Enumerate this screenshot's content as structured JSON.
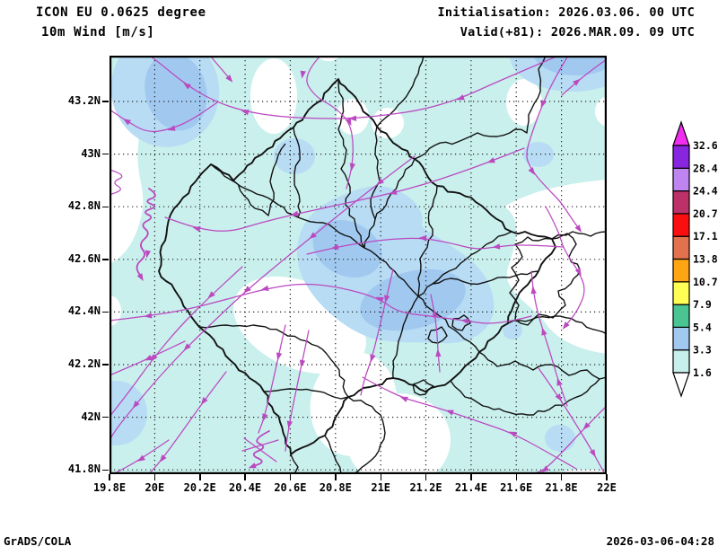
{
  "header": {
    "model": "ICON EU 0.0625 degree",
    "field": "10m Wind [m/s]",
    "init": "Initialisation: 2026.03.06. 00 UTC",
    "valid": "Valid(+81): 2026.MAR.09. 09 UTC"
  },
  "axes": {
    "x_ticks": [
      "19.8E",
      "20E",
      "20.2E",
      "20.4E",
      "20.6E",
      "20.8E",
      "21E",
      "21.2E",
      "21.4E",
      "21.6E",
      "21.8E",
      "22E"
    ],
    "y_ticks": [
      "43.2N",
      "43N",
      "42.8N",
      "42.6N",
      "42.4N",
      "42.2N",
      "42N",
      "41.8N"
    ]
  },
  "colorbar": {
    "levels": [
      "1.6",
      "3.3",
      "5.4",
      "7.9",
      "10.7",
      "13.8",
      "17.1",
      "20.7",
      "24.4",
      "28.4",
      "32.6"
    ],
    "segment_colors": [
      "#C7EFEC",
      "#A1C9F0",
      "#4AC492",
      "#FEFE54",
      "#FFA513",
      "#E2714D",
      "#F90F0F",
      "#BC3268",
      "#BE84F0",
      "#8726DE"
    ],
    "above_color": "#F02DF0",
    "below_color": "#FFFFFF"
  },
  "map_colors": {
    "background_cyan": "#C9F0ED",
    "shade_blue": "#B7DCF4",
    "shade_blue_core": "#A1C9F0",
    "shade_white": "#FFFFFF",
    "streamline": "#BB49C0",
    "boundary": "#121212",
    "grid": "#222222"
  },
  "footer": {
    "left": "GrADS/COLA",
    "right": "2026-03-06-04:28"
  }
}
